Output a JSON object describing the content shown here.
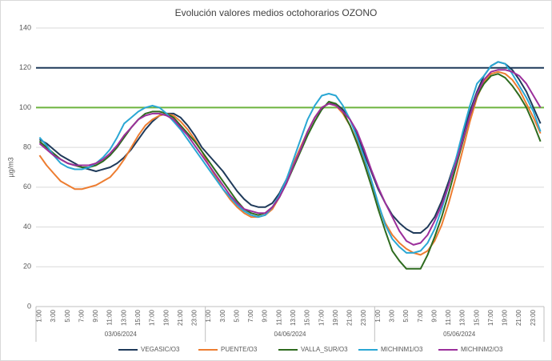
{
  "chart_data": {
    "type": "line",
    "title": "Evolución valores medios octohorarios OZONO",
    "y_label": "µg/m3",
    "categories": [
      "1:00",
      null,
      "3:00",
      null,
      "5:00",
      null,
      "7:00",
      null,
      "9:00",
      null,
      "11:00",
      null,
      "13:00",
      null,
      "15:00",
      null,
      "17:00",
      null,
      "19:00",
      null,
      "21:00",
      null,
      "23:00",
      null,
      "1:00",
      null,
      "3:00",
      null,
      "5:00",
      null,
      "7:00",
      null,
      "9:00",
      null,
      "11:00",
      null,
      "13:00",
      null,
      "15:00",
      null,
      "17:00",
      null,
      "19:00",
      null,
      "21:00",
      null,
      "23:00",
      null,
      "1:00",
      null,
      "3:00",
      null,
      "5:00",
      null,
      "7:00",
      null,
      "9:00",
      null,
      "11:00",
      null,
      "13:00",
      null,
      "15:00",
      null,
      "17:00",
      null,
      "19:00",
      null,
      "21:00",
      null,
      "23:00",
      null
    ],
    "groups": [
      "03/06/2024",
      "04/06/2024",
      "05/06/2024"
    ],
    "ylim": [
      0,
      140
    ],
    "yticks": [
      0,
      20,
      40,
      60,
      80,
      100,
      120,
      140
    ],
    "grid": true,
    "reference_lines": [
      {
        "value": 120,
        "color": "#1f3a5a"
      },
      {
        "value": 100,
        "color": "#6db33f"
      }
    ],
    "legend": "bottom",
    "series": [
      {
        "name": "VEGASIC/O3",
        "color": "#1f3a5a",
        "values": [
          84,
          82,
          79,
          76,
          74,
          72,
          70,
          69,
          68,
          69,
          70,
          72,
          75,
          79,
          84,
          89,
          93,
          96,
          97,
          97,
          95,
          91,
          86,
          80,
          76,
          72,
          68,
          63,
          58,
          54,
          51,
          50,
          50,
          52,
          57,
          64,
          72,
          80,
          88,
          95,
          100,
          102,
          102,
          99,
          94,
          86,
          77,
          68,
          59,
          52,
          46,
          42,
          39,
          37,
          37,
          40,
          45,
          53,
          63,
          74,
          86,
          98,
          108,
          116,
          121,
          123,
          122,
          119,
          114,
          108,
          100,
          92
        ]
      },
      {
        "name": "PUENTE/O3",
        "color": "#ed7d31",
        "values": [
          76,
          71,
          67,
          63,
          61,
          59,
          59,
          60,
          61,
          63,
          65,
          69,
          74,
          80,
          86,
          91,
          94,
          96,
          97,
          96,
          93,
          89,
          84,
          78,
          71,
          65,
          59,
          54,
          50,
          47,
          45,
          45,
          46,
          49,
          55,
          63,
          72,
          80,
          88,
          95,
          100,
          102,
          101,
          97,
          91,
          83,
          73,
          62,
          51,
          42,
          36,
          32,
          29,
          27,
          26,
          28,
          33,
          41,
          52,
          65,
          79,
          93,
          105,
          113,
          117,
          118,
          117,
          114,
          109,
          102,
          95,
          87
        ]
      },
      {
        "name": "VALLA_SUR/O3",
        "color": "#2e6b1f",
        "values": [
          83,
          80,
          77,
          74,
          72,
          71,
          70,
          70,
          71,
          73,
          76,
          80,
          85,
          90,
          94,
          97,
          98,
          98,
          97,
          95,
          91,
          87,
          83,
          78,
          73,
          68,
          63,
          58,
          53,
          49,
          47,
          46,
          47,
          50,
          55,
          62,
          70,
          78,
          86,
          93,
          99,
          103,
          102,
          98,
          91,
          82,
          72,
          61,
          49,
          38,
          28,
          23,
          19,
          19,
          19,
          26,
          35,
          45,
          57,
          70,
          83,
          96,
          106,
          112,
          116,
          117,
          115,
          111,
          106,
          100,
          92,
          83
        ]
      },
      {
        "name": "MICHINM1/O3",
        "color": "#2aa7d4",
        "values": [
          85,
          81,
          76,
          72,
          70,
          69,
          69,
          70,
          72,
          75,
          79,
          85,
          92,
          95,
          98,
          100,
          101,
          100,
          97,
          93,
          89,
          84,
          79,
          74,
          69,
          64,
          59,
          55,
          51,
          48,
          46,
          45,
          46,
          50,
          56,
          64,
          74,
          84,
          94,
          101,
          106,
          107,
          106,
          101,
          94,
          85,
          75,
          64,
          52,
          41,
          34,
          30,
          27,
          27,
          28,
          32,
          39,
          49,
          61,
          74,
          88,
          101,
          112,
          116,
          121,
          123,
          122,
          117,
          111,
          105,
          98,
          88
        ]
      },
      {
        "name": "MICHINM2/O3",
        "color": "#9b2f9b",
        "values": [
          82,
          79,
          76,
          74,
          72,
          71,
          71,
          71,
          72,
          74,
          77,
          81,
          86,
          90,
          94,
          96,
          97,
          97,
          96,
          94,
          90,
          86,
          81,
          76,
          71,
          66,
          61,
          56,
          52,
          49,
          48,
          47,
          47,
          50,
          55,
          62,
          71,
          79,
          88,
          95,
          100,
          102,
          101,
          98,
          94,
          88,
          79,
          69,
          60,
          52,
          45,
          38,
          33,
          31,
          32,
          36,
          43,
          51,
          61,
          72,
          84,
          96,
          107,
          114,
          118,
          119,
          119,
          118,
          116,
          112,
          106,
          100
        ]
      }
    ]
  }
}
